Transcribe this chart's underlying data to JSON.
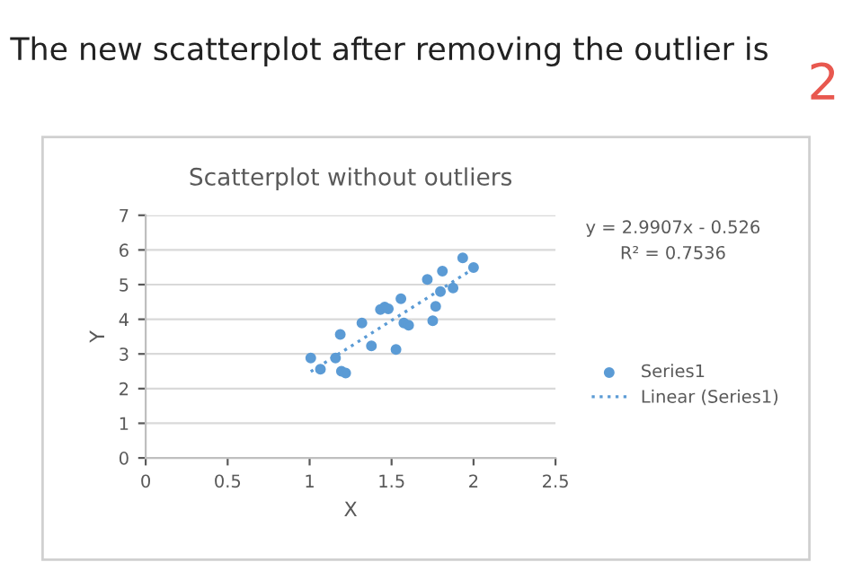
{
  "chart_data": {
    "type": "scatter",
    "title": "Scatterplot without outliers",
    "xlabel": "X",
    "ylabel": "Y",
    "annotations": [
      "The new scatterplot after removing the outlier is",
      "2",
      "y = 2.9907x - 0.526",
      "R² = 0.7536"
    ],
    "series": [
      {
        "name": "Series1",
        "color": "#5b9bd5",
        "marker": "circle",
        "x": [
          1.007,
          1.066,
          1.158,
          1.187,
          1.194,
          1.22,
          1.319,
          1.377,
          1.432,
          1.458,
          1.48,
          1.527,
          1.557,
          1.575,
          1.604,
          1.718,
          1.751,
          1.769,
          1.798,
          1.81,
          1.875,
          1.934,
          2.0
        ],
        "values": [
          2.88,
          2.56,
          2.88,
          3.56,
          2.5,
          2.45,
          3.89,
          3.23,
          4.28,
          4.35,
          4.3,
          3.13,
          4.59,
          3.89,
          3.83,
          5.15,
          3.96,
          4.37,
          4.8,
          5.39,
          4.9,
          5.77,
          5.49
        ]
      },
      {
        "name": "Linear (Series1)",
        "type": "line",
        "color": "#5b9bd5",
        "line_style": "dotted",
        "x": [
          1.007,
          2.0
        ],
        "values": [
          2.49,
          5.46
        ]
      }
    ],
    "xlim": [
      0,
      2.5
    ],
    "xticks": [
      0,
      0.5,
      1,
      1.5,
      2,
      2.5
    ],
    "ylim": [
      0,
      7
    ],
    "yticks": [
      0,
      1,
      2,
      3,
      4,
      5,
      6,
      7
    ],
    "grid": "y",
    "legend": "right"
  }
}
